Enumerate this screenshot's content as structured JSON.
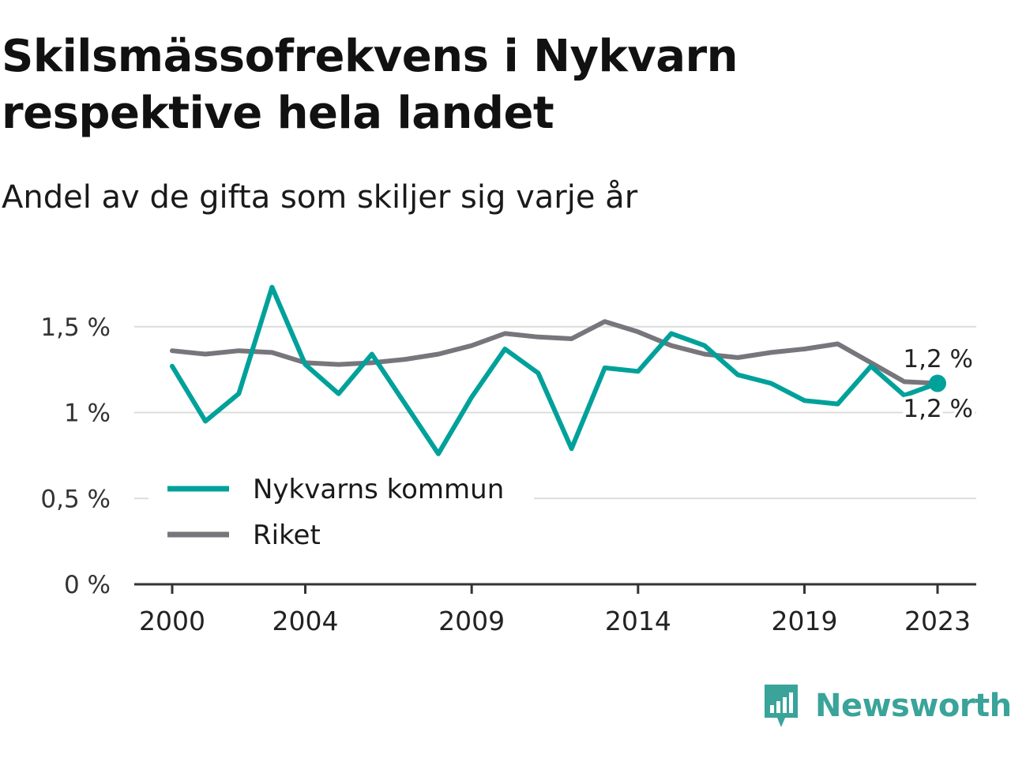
{
  "title": "Skilsmässofrekvens i Nykvarn respektive hela landet",
  "subtitle": "Andel av de gifta som skiljer sig varje år",
  "brand": {
    "name": "Newsworthy",
    "color": "#3aa39a",
    "icon": "newsworthy-logo-icon"
  },
  "chart_data": {
    "type": "line",
    "x": [
      2000,
      2001,
      2002,
      2003,
      2004,
      2005,
      2006,
      2007,
      2008,
      2009,
      2010,
      2011,
      2012,
      2013,
      2014,
      2015,
      2016,
      2017,
      2018,
      2019,
      2020,
      2021,
      2022,
      2023
    ],
    "xticks": [
      2000,
      2004,
      2009,
      2014,
      2019,
      2023
    ],
    "xtick_labels": [
      "2000",
      "2004",
      "2009",
      "2014",
      "2019",
      "2023"
    ],
    "yticks": [
      0,
      0.5,
      1,
      1.5
    ],
    "ytick_labels": [
      "0 %",
      "0,5 %",
      "1 %",
      "1,5 %"
    ],
    "ylim": [
      0,
      1.75
    ],
    "grid": true,
    "legend_placement": "bottom-left",
    "series": [
      {
        "name": "Nykvarns kommun",
        "color": "#00a19a",
        "values": [
          1.27,
          0.95,
          1.11,
          1.73,
          1.28,
          1.11,
          1.34,
          1.05,
          0.76,
          1.09,
          1.37,
          1.23,
          0.79,
          1.26,
          1.24,
          1.46,
          1.39,
          1.22,
          1.17,
          1.07,
          1.05,
          1.27,
          1.1,
          1.17
        ],
        "end_label": "1,2 %"
      },
      {
        "name": "Riket",
        "color": "#76767c",
        "values": [
          1.36,
          1.34,
          1.36,
          1.35,
          1.29,
          1.28,
          1.29,
          1.31,
          1.34,
          1.39,
          1.46,
          1.44,
          1.43,
          1.53,
          1.47,
          1.39,
          1.34,
          1.32,
          1.35,
          1.37,
          1.4,
          1.29,
          1.18,
          1.17
        ],
        "end_label": "1,2 %"
      }
    ]
  }
}
